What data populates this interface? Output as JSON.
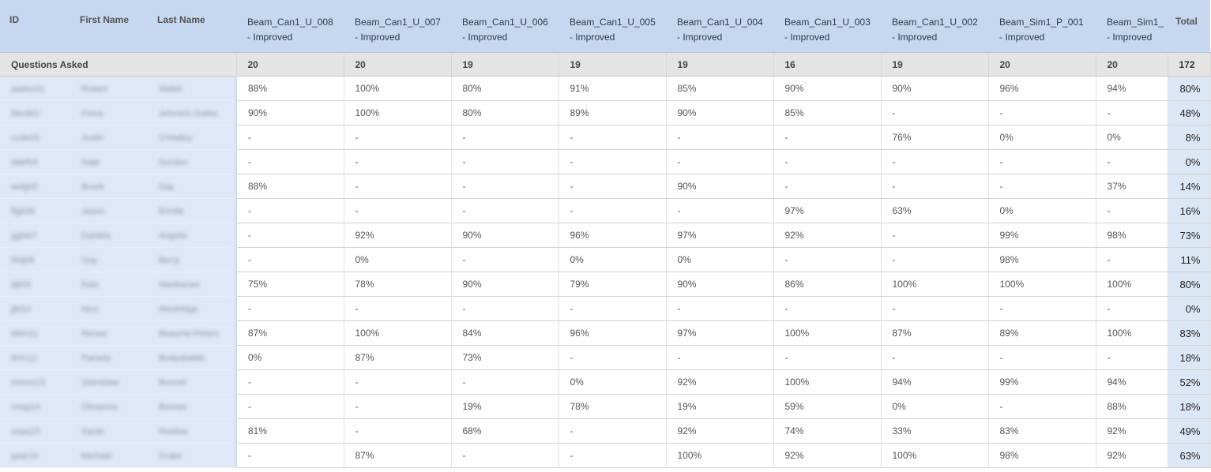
{
  "header": {
    "id": "ID",
    "first_name": "First Name",
    "last_name": "Last Name",
    "total": "Total",
    "assignments": [
      {
        "name": "Beam_Can1_U_008",
        "status": "- Improved"
      },
      {
        "name": "Beam_Can1_U_007",
        "status": "- Improved"
      },
      {
        "name": "Beam_Can1_U_006",
        "status": "- Improved"
      },
      {
        "name": "Beam_Can1_U_005",
        "status": "- Improved"
      },
      {
        "name": "Beam_Can1_U_004",
        "status": "- Improved"
      },
      {
        "name": "Beam_Can1_U_003",
        "status": "- Improved"
      },
      {
        "name": "Beam_Can1_U_002",
        "status": "- Improved"
      },
      {
        "name": "Beam_Sim1_P_001",
        "status": "- Improved"
      },
      {
        "name": "Beam_Sim1_",
        "status": "- Improved"
      }
    ]
  },
  "questions_asked": {
    "label": "Questions Asked",
    "values": [
      "20",
      "20",
      "19",
      "19",
      "19",
      "16",
      "19",
      "20",
      "20"
    ],
    "total": "172"
  },
  "students": [
    {
      "id": "aabbc01",
      "first": "Robert",
      "last": "Walsh",
      "scores": [
        "88%",
        "100%",
        "80%",
        "91%",
        "85%",
        "90%",
        "90%",
        "96%",
        "94%"
      ],
      "total": "80%"
    },
    {
      "id": "bbcd02",
      "first": "Fiona",
      "last": "Johnson-Gates",
      "scores": [
        "90%",
        "100%",
        "80%",
        "89%",
        "90%",
        "85%",
        "-",
        "-",
        "-"
      ],
      "total": "48%"
    },
    {
      "id": "ccde03",
      "first": "Justin",
      "last": "O'Malley",
      "scores": [
        "-",
        "-",
        "-",
        "-",
        "-",
        "-",
        "76%",
        "0%",
        "0%"
      ],
      "total": "8%"
    },
    {
      "id": "ddef04",
      "first": "Nate",
      "last": "Gordon",
      "scores": [
        "-",
        "-",
        "-",
        "-",
        "-",
        "-",
        "-",
        "-",
        "-"
      ],
      "total": "0%"
    },
    {
      "id": "eefg05",
      "first": "Brook",
      "last": "Day",
      "scores": [
        "88%",
        "-",
        "-",
        "-",
        "90%",
        "-",
        "-",
        "-",
        "37%"
      ],
      "total": "14%"
    },
    {
      "id": "ffgh06",
      "first": "Jason",
      "last": "Enride",
      "scores": [
        "-",
        "-",
        "-",
        "-",
        "-",
        "97%",
        "63%",
        "0%",
        "-"
      ],
      "total": "16%"
    },
    {
      "id": "gghi07",
      "first": "Daniela",
      "last": "Angelis",
      "scores": [
        "-",
        "92%",
        "90%",
        "96%",
        "97%",
        "92%",
        "-",
        "99%",
        "98%"
      ],
      "total": "73%"
    },
    {
      "id": "hhij08",
      "first": "Guy",
      "last": "Berry",
      "scores": [
        "-",
        "0%",
        "-",
        "0%",
        "0%",
        "-",
        "-",
        "98%",
        "-"
      ],
      "total": "11%"
    },
    {
      "id": "iijk09",
      "first": "Ravi",
      "last": "Mankanen",
      "scores": [
        "75%",
        "78%",
        "90%",
        "79%",
        "90%",
        "86%",
        "100%",
        "100%",
        "100%"
      ],
      "total": "80%"
    },
    {
      "id": "jjkl10",
      "first": "Nico",
      "last": "Woolridge",
      "scores": [
        "-",
        "-",
        "-",
        "-",
        "-",
        "-",
        "-",
        "-",
        "-"
      ],
      "total": "0%"
    },
    {
      "id": "kklm11",
      "first": "Renee",
      "last": "Beaume-Peters",
      "scores": [
        "87%",
        "100%",
        "84%",
        "96%",
        "97%",
        "100%",
        "87%",
        "89%",
        "100%"
      ],
      "total": "83%"
    },
    {
      "id": "llmn12",
      "first": "Pamela",
      "last": "Bodyabaldo",
      "scores": [
        "0%",
        "87%",
        "73%",
        "-",
        "-",
        "-",
        "-",
        "-",
        "-"
      ],
      "total": "18%"
    },
    {
      "id": "mmno13",
      "first": "Stanislaw",
      "last": "Bonnet",
      "scores": [
        "-",
        "-",
        "-",
        "0%",
        "92%",
        "100%",
        "94%",
        "99%",
        "94%"
      ],
      "total": "52%"
    },
    {
      "id": "nnop14",
      "first": "Olivianna",
      "last": "Bonnet",
      "scores": [
        "-",
        "-",
        "19%",
        "78%",
        "19%",
        "59%",
        "0%",
        "-",
        "88%"
      ],
      "total": "18%"
    },
    {
      "id": "oopq15",
      "first": "Sarah",
      "last": "Rostiva",
      "scores": [
        "81%",
        "-",
        "68%",
        "-",
        "92%",
        "74%",
        "33%",
        "83%",
        "92%"
      ],
      "total": "49%"
    },
    {
      "id": "ppqr16",
      "first": "Michael",
      "last": "Drake",
      "scores": [
        "-",
        "87%",
        "-",
        "-",
        "100%",
        "92%",
        "100%",
        "98%",
        "92%"
      ],
      "total": "63%"
    }
  ]
}
